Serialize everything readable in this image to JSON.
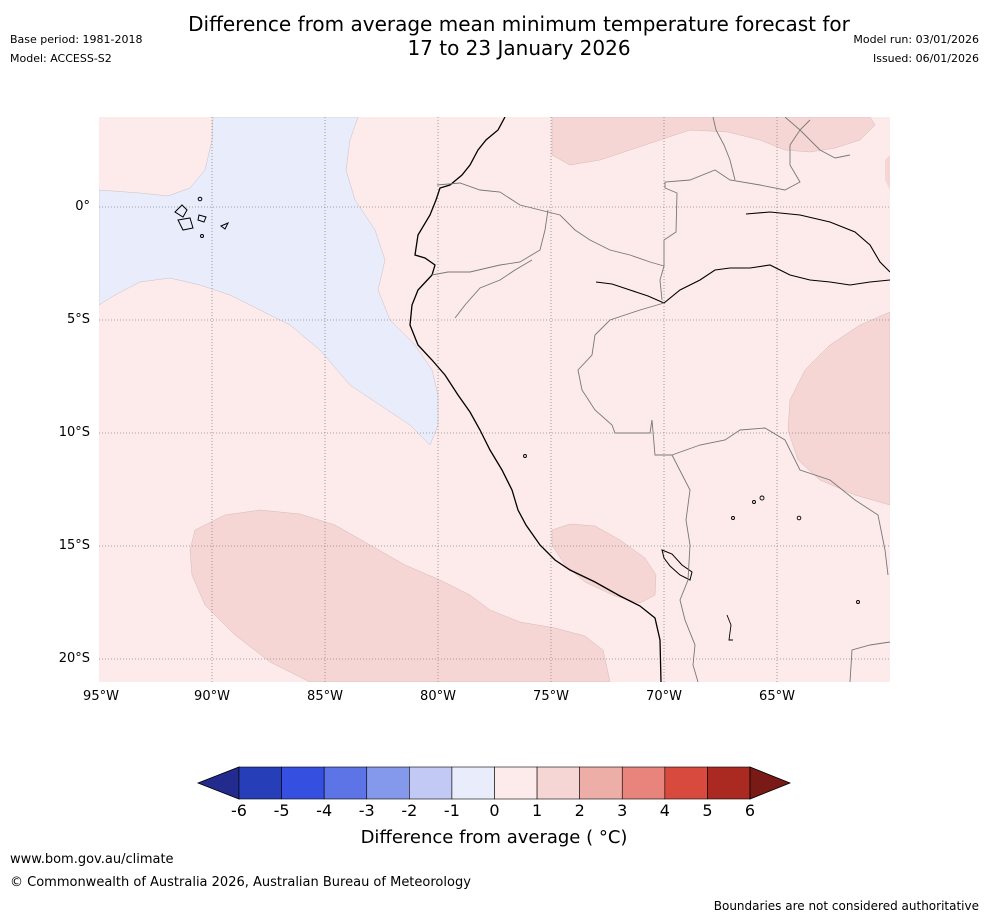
{
  "header": {
    "title_line1": "Difference from average mean minimum temperature forecast for",
    "title_line2": "17 to 23 January 2026",
    "base_period": "Base period: 1981-2018",
    "model": "Model: ACCESS-S2",
    "model_run": "Model run: 03/01/2026",
    "issued": "Issued: 06/01/2026"
  },
  "map": {
    "lat_ticks": [
      "0°",
      "5°S",
      "10°S",
      "15°S",
      "20°S"
    ],
    "lon_ticks": [
      "95°W",
      "90°W",
      "85°W",
      "80°W",
      "75°W",
      "70°W",
      "65°W"
    ],
    "region": "Western South America (Ecuador, Peru, Bolivia, Galápagos)",
    "anomaly_colors": {
      "neg_1_to_0": "#e8ecfb",
      "0_to_1": "#fcebea",
      "1_to_2": "#f5d6d4"
    }
  },
  "colorbar": {
    "ticks": [
      "-6",
      "-5",
      "-4",
      "-3",
      "-2",
      "-1",
      "0",
      "1",
      "2",
      "3",
      "4",
      "5",
      "6"
    ],
    "label": "Difference from average ( °C)",
    "colors": [
      "#232b8e",
      "#263fb8",
      "#3550e0",
      "#5c74e6",
      "#8498ec",
      "#c3c9f5",
      "#e8ecfb",
      "#fcebea",
      "#f5d6d4",
      "#eeaea8",
      "#e8847c",
      "#d84a3e",
      "#aa2a22",
      "#7a1a16"
    ]
  },
  "footer": {
    "website": "www.bom.gov.au/climate",
    "copyright": "© Commonwealth of Australia 2026, Australian Bureau of Meteorology",
    "disclaimer": "Boundaries are not considered authoritative"
  }
}
